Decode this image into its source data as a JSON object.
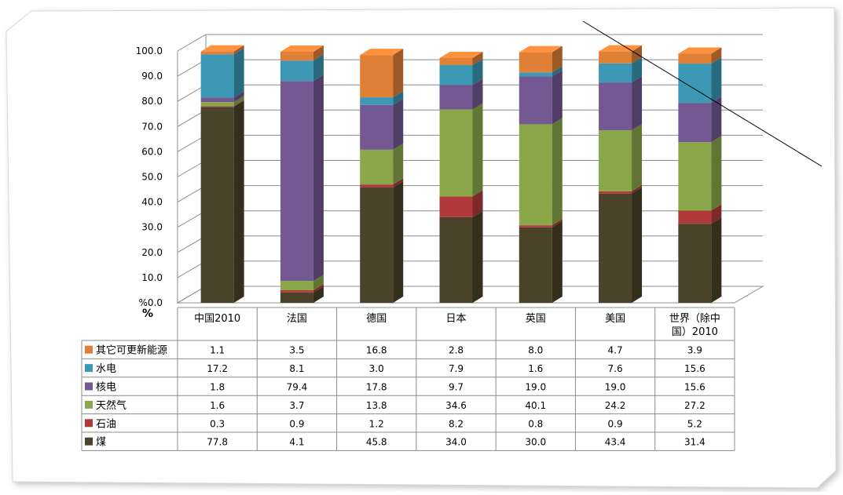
{
  "chart_data": {
    "type": "bar",
    "stacked": true,
    "title": "",
    "xlabel": "",
    "ylabel": "%",
    "ylim": [
      0,
      100
    ],
    "yticks": [
      "%0.0",
      "10.0",
      "20.0",
      "30.0",
      "40.0",
      "50.0",
      "60.0",
      "70.0",
      "80.0",
      "90.0",
      "100.0"
    ],
    "categories": [
      "中国2010",
      "法国",
      "德国",
      "日本",
      "英国",
      "美国",
      "世界（除中国）2010"
    ],
    "category_lines": [
      [
        "中国2010"
      ],
      [
        "法国"
      ],
      [
        "德国"
      ],
      [
        "日本"
      ],
      [
        "英国"
      ],
      [
        "美国"
      ],
      [
        "世界（除中",
        "国）2010"
      ]
    ],
    "series": [
      {
        "name": "煤",
        "color": "#4a4229",
        "values": [
          77.8,
          4.1,
          45.8,
          34.0,
          30.0,
          43.4,
          31.4
        ],
        "labels": [
          "77.8",
          "4.1",
          "45.8",
          "34.0",
          "30.0",
          "43.4",
          "31.4"
        ]
      },
      {
        "name": "石油",
        "color": "#b03a3a",
        "values": [
          0.3,
          0.9,
          1.2,
          8.2,
          0.8,
          0.9,
          5.2
        ],
        "labels": [
          "0.3",
          "0.9",
          "1.2",
          "8.2",
          "0.8",
          "0.9",
          "5.2"
        ]
      },
      {
        "name": "天然气",
        "color": "#8aa84a",
        "values": [
          1.6,
          3.7,
          13.8,
          34.6,
          40.1,
          24.2,
          27.2
        ],
        "labels": [
          "1.6",
          "3.7",
          "13.8",
          "34.6",
          "40.1",
          "24.2",
          "27.2"
        ]
      },
      {
        "name": "核电",
        "color": "#735891",
        "values": [
          1.8,
          79.4,
          17.8,
          9.7,
          19.0,
          19.0,
          15.6
        ],
        "labels": [
          "1.8",
          "79.4",
          "17.8",
          "9.7",
          "19.0",
          "19.0",
          "15.6"
        ]
      },
      {
        "name": "水电",
        "color": "#3c98b4",
        "values": [
          17.2,
          8.1,
          3.0,
          7.9,
          1.6,
          7.6,
          15.6
        ],
        "labels": [
          "17.2",
          "8.1",
          "3.0",
          "7.9",
          "1.6",
          "7.6",
          "15.6"
        ]
      },
      {
        "name": "其它可更新能源",
        "color": "#e07f36",
        "values": [
          1.1,
          3.5,
          16.8,
          2.8,
          8.0,
          4.7,
          3.9
        ],
        "labels": [
          "1.1",
          "3.5",
          "16.8",
          "2.8",
          "8.0",
          "4.7",
          "3.9"
        ]
      }
    ],
    "table_row_order": [
      "其它可更新能源",
      "水电",
      "核电",
      "天然气",
      "石油",
      "煤"
    ],
    "grid": true,
    "legend": "in-table"
  }
}
